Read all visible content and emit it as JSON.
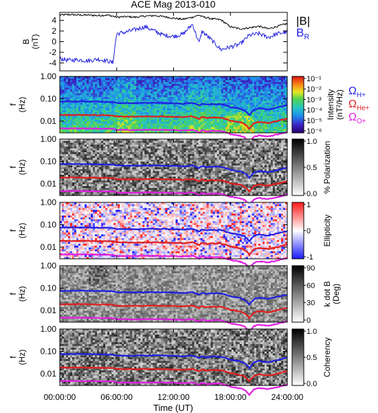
{
  "title": "ACE Mag 2013-010",
  "xaxis": {
    "label": "Time (UT)",
    "ticks": [
      "00:00:00",
      "06:00:00",
      "12:00:00",
      "18:00:00",
      "24:00:00"
    ],
    "range_hours": [
      0,
      24
    ]
  },
  "legend_top": [
    {
      "text": "|B|",
      "sub": "",
      "color": "#000000"
    },
    {
      "text": "B",
      "sub": "R",
      "color": "#1f1fe0"
    }
  ],
  "legend_ions": [
    {
      "text": "Ω",
      "sub": "H+",
      "color": "#1f1fe0"
    },
    {
      "text": "Ω",
      "sub": "He+",
      "color": "#e01f1f"
    },
    {
      "text": "Ω",
      "sub": "O+",
      "color": "#e01fe0"
    }
  ],
  "colors": {
    "B_total": "#000000",
    "B_R": "#1f1fe0",
    "omega_H": "#1f1fe0",
    "omega_He": "#e01f1f",
    "omega_O": "#e01fe0"
  },
  "chart_data": [
    {
      "type": "line",
      "ylabel": "B",
      "yunit": "(nT)",
      "ylim": [
        -5.5,
        5.5
      ],
      "yticks": [
        "4",
        "2",
        "0",
        "-2",
        "-4"
      ],
      "yticks_values": [
        4,
        2,
        0,
        -2,
        -4
      ],
      "x_hours": [
        0,
        1,
        2,
        3,
        4,
        5,
        5.6,
        6,
        7,
        8,
        9,
        10,
        11,
        12,
        13,
        14,
        14.7,
        15,
        16,
        17,
        18,
        19,
        20,
        21,
        22,
        23,
        24
      ],
      "series": [
        {
          "name": "|B|",
          "values": [
            5.0,
            5.1,
            5.0,
            5.0,
            4.9,
            5.0,
            4.8,
            4.6,
            4.7,
            4.6,
            4.8,
            4.9,
            4.7,
            4.4,
            4.2,
            4.6,
            5.0,
            4.7,
            4.3,
            4.1,
            2.8,
            2.4,
            2.6,
            2.9,
            2.4,
            2.9,
            3.4
          ]
        },
        {
          "name": "B_R",
          "values": [
            -3.2,
            -3.5,
            -3.4,
            -3.6,
            -3.3,
            -3.6,
            -4.0,
            1.5,
            1.8,
            2.3,
            2.8,
            2.0,
            1.2,
            1.0,
            1.4,
            3.3,
            -0.3,
            2.0,
            0.3,
            -1.5,
            -1.0,
            -0.5,
            1.2,
            1.5,
            0.8,
            1.5,
            1.8
          ]
        }
      ]
    },
    {
      "type": "heatmap",
      "ylabel": "f",
      "yunit": "(Hz)",
      "yscale": "log",
      "ylim": [
        0.003,
        1.0
      ],
      "yticks": [
        "1.00",
        "0.10",
        "0.01"
      ],
      "yticks_values": [
        1.0,
        0.1,
        0.01
      ],
      "colorbar": {
        "label": "Intensity",
        "unit": "(nT²/Hz)",
        "ticks": [
          "10⁻¹",
          "10⁻²",
          "10⁻³",
          "10⁻⁴",
          "10⁻⁵",
          "10⁻⁶"
        ],
        "range": [
          -6,
          -1
        ],
        "scale": "rainbow"
      }
    },
    {
      "type": "heatmap",
      "ylabel": "f",
      "yunit": "(Hz)",
      "yscale": "log",
      "ylim": [
        0.003,
        1.0
      ],
      "yticks": [
        "1.00",
        "0.10",
        "0.01"
      ],
      "yticks_values": [
        1.0,
        0.1,
        0.01
      ],
      "colorbar": {
        "label": "% Polarization",
        "ticks": [
          "1.0",
          "0.5",
          "0.0"
        ],
        "range": [
          0,
          1
        ],
        "scale": "gray"
      }
    },
    {
      "type": "heatmap",
      "ylabel": "f",
      "yunit": "(Hz)",
      "yscale": "log",
      "ylim": [
        0.003,
        1.0
      ],
      "yticks": [
        "1.00",
        "0.10",
        "0.01"
      ],
      "yticks_values": [
        1.0,
        0.1,
        0.01
      ],
      "colorbar": {
        "label": "Ellipticity",
        "ticks": [
          "1",
          "0",
          "-1"
        ],
        "range": [
          -1,
          1
        ],
        "scale": "bluewhitered"
      }
    },
    {
      "type": "heatmap",
      "ylabel": "f",
      "yunit": "(Hz)",
      "yscale": "log",
      "ylim": [
        0.003,
        1.0
      ],
      "yticks": [
        "1.00",
        "0.10",
        "0.01"
      ],
      "yticks_values": [
        1.0,
        0.1,
        0.01
      ],
      "colorbar": {
        "label": "k dot B",
        "unit": "(Deg)",
        "ticks": [
          "90",
          "60",
          "30",
          "0"
        ],
        "range": [
          0,
          90
        ],
        "scale": "gray"
      }
    },
    {
      "type": "heatmap",
      "ylabel": "f",
      "yunit": "(Hz)",
      "yscale": "log",
      "ylim": [
        0.003,
        1.0
      ],
      "yticks": [
        "1.00",
        "0.10",
        "0.01"
      ],
      "yticks_values": [
        1.0,
        0.1,
        0.01
      ],
      "colorbar": {
        "label": "Coherency",
        "ticks": [
          "1.0",
          "0.5",
          "0.0"
        ],
        "range": [
          0,
          1
        ],
        "scale": "gray"
      }
    }
  ],
  "gyrofrequency_lines": {
    "x_hours": [
      0,
      2,
      4,
      5.6,
      6,
      8,
      10,
      12,
      13,
      14,
      14.7,
      15,
      15.5,
      16,
      17,
      18,
      19,
      19.5,
      20,
      20.5,
      21,
      22,
      23,
      24
    ],
    "omega_H_hz": [
      0.075,
      0.076,
      0.074,
      0.072,
      0.065,
      0.064,
      0.066,
      0.063,
      0.06,
      0.066,
      0.05,
      0.062,
      0.055,
      0.058,
      0.058,
      0.042,
      0.036,
      0.03,
      0.018,
      0.032,
      0.037,
      0.033,
      0.041,
      0.052
    ]
  }
}
